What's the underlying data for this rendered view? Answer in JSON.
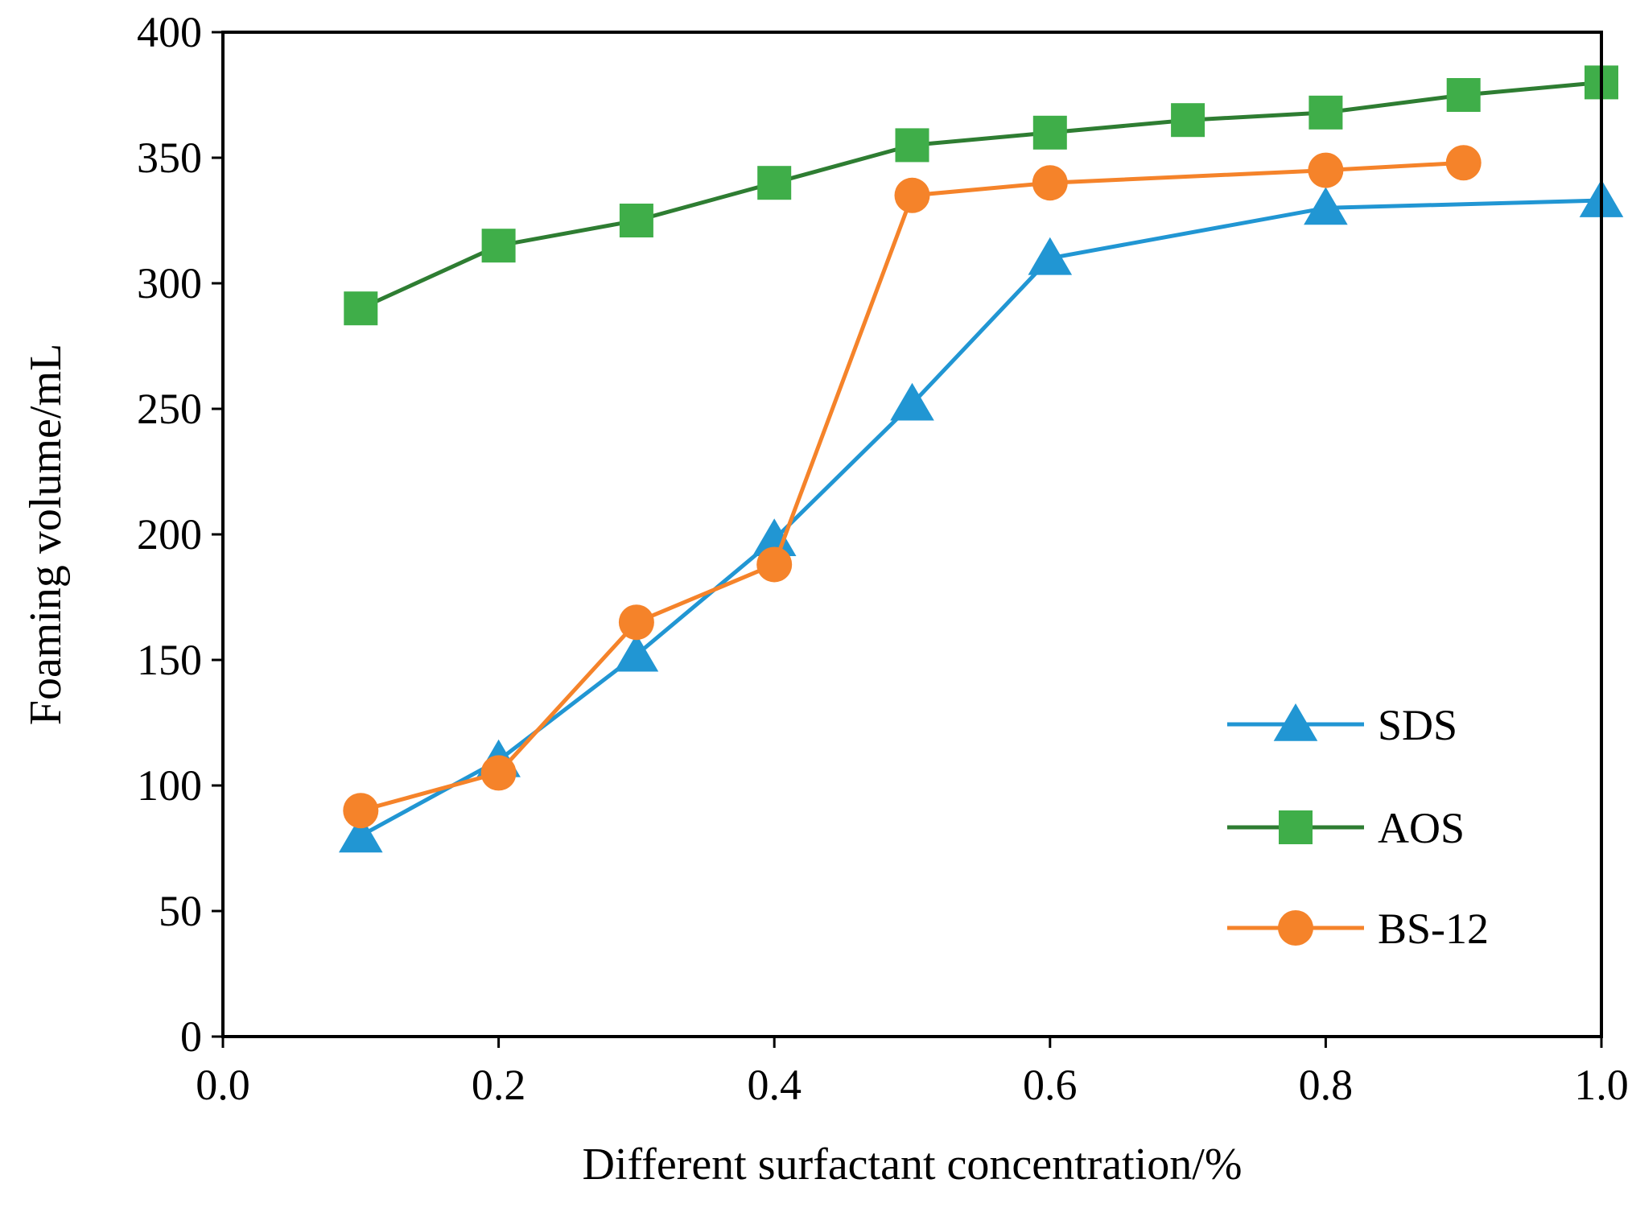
{
  "chart_data": {
    "type": "line",
    "title": "",
    "xlabel": "Different surfactant concentration/%",
    "ylabel": "Foaming volume/mL",
    "xlim": [
      0.0,
      1.0
    ],
    "ylim": [
      0,
      400
    ],
    "x_ticks": [
      0.0,
      0.2,
      0.4,
      0.6,
      0.8,
      1.0
    ],
    "x_tick_labels": [
      "0.0",
      "0.2",
      "0.4",
      "0.6",
      "0.8",
      "1.0"
    ],
    "y_ticks": [
      0,
      50,
      100,
      150,
      200,
      250,
      300,
      350,
      400
    ],
    "y_tick_labels": [
      "0",
      "50",
      "100",
      "150",
      "200",
      "250",
      "300",
      "350",
      "400"
    ],
    "grid": false,
    "legend_position": "bottom-right",
    "series": [
      {
        "name": "SDS",
        "marker": "triangle",
        "color": "#2196d3",
        "x": [
          0.1,
          0.2,
          0.3,
          0.4,
          0.5,
          0.6,
          0.8,
          1.0
        ],
        "y": [
          80,
          110,
          152,
          198,
          252,
          310,
          330,
          333
        ]
      },
      {
        "name": "AOS",
        "marker": "square",
        "color": "#2e7d32",
        "marker_color": "#3fae49",
        "x": [
          0.1,
          0.2,
          0.3,
          0.4,
          0.5,
          0.6,
          0.7,
          0.8,
          0.9,
          1.0
        ],
        "y": [
          290,
          315,
          325,
          340,
          355,
          360,
          365,
          368,
          375,
          380
        ]
      },
      {
        "name": "BS-12",
        "marker": "circle",
        "color": "#f5832a",
        "x": [
          0.1,
          0.2,
          0.3,
          0.4,
          0.5,
          0.6,
          0.8,
          0.9
        ],
        "y": [
          90,
          105,
          165,
          188,
          335,
          340,
          345,
          348
        ]
      }
    ]
  }
}
